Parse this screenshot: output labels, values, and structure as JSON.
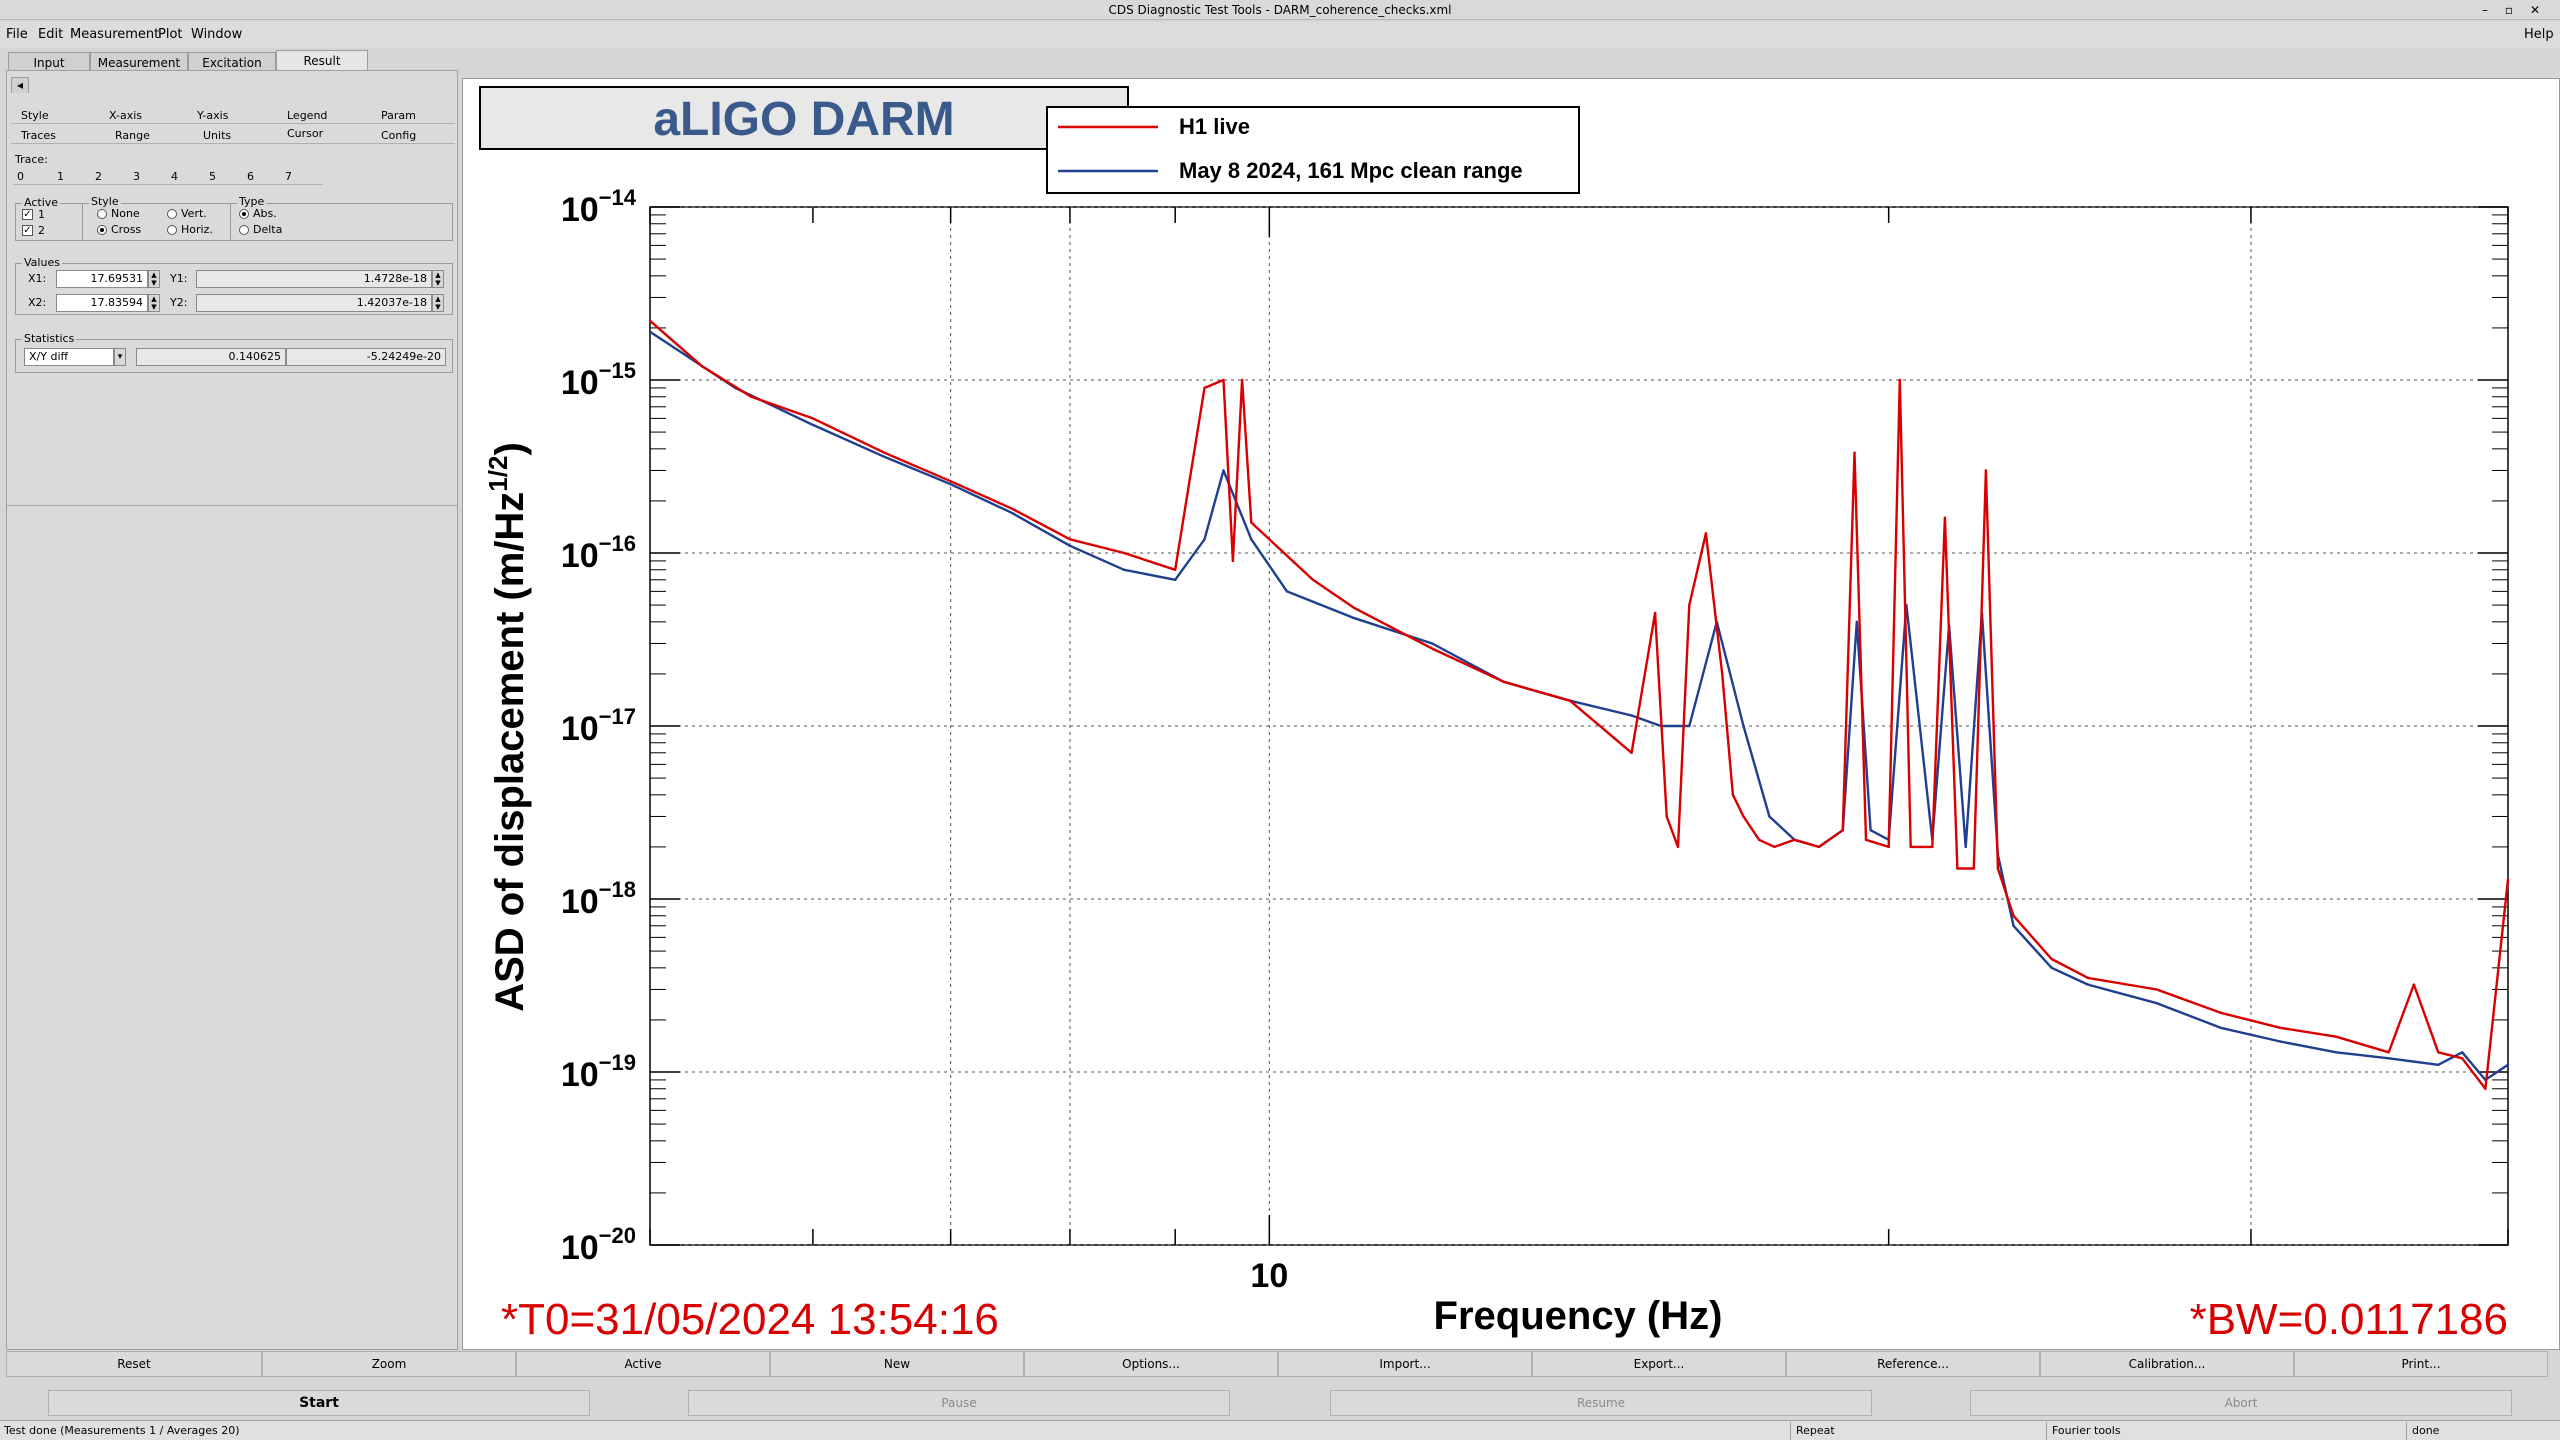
{
  "window": {
    "title": "CDS Diagnostic Test Tools - DARM_coherence_checks.xml",
    "controls": [
      "–",
      "▫",
      "✕"
    ]
  },
  "menu": {
    "items": [
      "File",
      "Edit",
      "Measurement",
      "Plot",
      "Window"
    ],
    "help": "Help"
  },
  "main_tabs": [
    "Input",
    "Measurement",
    "Excitation",
    "Result"
  ],
  "result_panel": {
    "back_arrow": "◂",
    "tabs_row1": [
      "Style",
      "X-axis",
      "Y-axis",
      "Legend",
      "Param"
    ],
    "tabs_row2": [
      "Traces",
      "Range",
      "Units",
      "Cursor",
      "Config"
    ],
    "trace_label": "Trace:",
    "trace_tabs": [
      "0",
      "1",
      "2",
      "3",
      "4",
      "5",
      "6",
      "7"
    ],
    "active_label": "Active",
    "active_items": [
      "1",
      "2"
    ],
    "style_label": "Style",
    "style_options": [
      "None",
      "Vert.",
      "Cross",
      "Horiz."
    ],
    "type_label": "Type",
    "type_options": [
      "Abs.",
      "Delta"
    ],
    "values_label": "Values",
    "x1_label": "X1:",
    "x1_value": "17.69531",
    "y1_label": "Y1:",
    "y1_value": "1.4728e-18",
    "x2_label": "X2:",
    "x2_value": "17.83594",
    "y2_label": "Y2:",
    "y2_value": "1.42037e-18",
    "statistics_label": "Statistics",
    "stat_mode": "X/Y diff",
    "stat_x": "0.140625",
    "stat_y": "-5.24249e-20"
  },
  "plot": {
    "title_box": "aLIGO DARM",
    "legend": [
      {
        "label": "H1 live",
        "color": "#d80000"
      },
      {
        "label": "May 8 2024, 161 Mpc clean range",
        "color": "#1f3f8f"
      }
    ],
    "y_label": "ASD of displacement (m/Hz",
    "y_label_exp": "1/2",
    "y_label_close": ")",
    "x_label": "Frequency (Hz)",
    "t0_text": "*T0=31/05/2024 13:54:16",
    "bw_text": "*BW=0.0117186"
  },
  "chart_data": {
    "type": "line",
    "title": "aLIGO DARM",
    "xlabel": "Frequency (Hz)",
    "ylabel": "ASD of displacement (m/Hz^(1/2))",
    "x_scale": "log",
    "y_scale": "log",
    "xlim": [
      5,
      40
    ],
    "ylim": [
      1e-20,
      1e-14
    ],
    "x_tick_labels": [
      "10"
    ],
    "y_tick_labels": [
      {
        "base": "10",
        "exp": "−14"
      },
      {
        "base": "10",
        "exp": "−15"
      },
      {
        "base": "10",
        "exp": "−16"
      },
      {
        "base": "10",
        "exp": "−17"
      },
      {
        "base": "10",
        "exp": "−18"
      },
      {
        "base": "10",
        "exp": "−19"
      },
      {
        "base": "10",
        "exp": "−20"
      }
    ],
    "grid": true,
    "legend_position": "top-center",
    "series": [
      {
        "name": "May 8 2024, 161 Mpc clean range",
        "color": "#1f3f8f",
        "x": [
          5,
          5.5,
          6,
          6.5,
          7,
          7.5,
          8,
          8.5,
          9,
          9.3,
          9.5,
          9.8,
          10.2,
          11,
          12,
          13,
          14,
          15,
          15.5,
          16,
          16.5,
          17,
          17.5,
          18,
          18.5,
          19,
          19.3,
          19.6,
          20,
          20.4,
          21,
          21.4,
          21.8,
          22.2,
          22.6,
          23,
          24,
          25,
          27,
          29,
          31,
          33,
          35,
          37,
          38,
          39,
          40
        ],
        "y": [
          1.9e-15,
          9e-16,
          5.5e-16,
          3.6e-16,
          2.5e-16,
          1.7e-16,
          1.1e-16,
          8e-17,
          7e-17,
          1.2e-16,
          3e-16,
          1.2e-16,
          6e-17,
          4.2e-17,
          3e-17,
          1.8e-17,
          1.4e-17,
          1.15e-17,
          1e-17,
          1e-17,
          4e-17,
          1e-17,
          3e-18,
          2.2e-18,
          2e-18,
          2.5e-18,
          4e-17,
          2.5e-18,
          2.2e-18,
          5e-17,
          2.2e-18,
          3.8e-17,
          2e-18,
          4.5e-17,
          1.8e-18,
          7e-19,
          4e-19,
          3.2e-19,
          2.5e-19,
          1.8e-19,
          1.5e-19,
          1.3e-19,
          1.2e-19,
          1.1e-19,
          1.3e-19,
          9e-20,
          1.1e-19
        ]
      },
      {
        "name": "H1 live",
        "color": "#d80000",
        "x": [
          5,
          5.3,
          5.6,
          6,
          6.5,
          7,
          7.5,
          8,
          8.5,
          9,
          9.3,
          9.5,
          9.6,
          9.7,
          9.8,
          10,
          10.5,
          11,
          12,
          13,
          14,
          15,
          15.4,
          15.6,
          15.8,
          16,
          16.3,
          16.6,
          16.8,
          17,
          17.3,
          17.6,
          18,
          18.5,
          19,
          19.25,
          19.5,
          20,
          20.25,
          20.5,
          21,
          21.3,
          21.6,
          22,
          22.3,
          22.6,
          23,
          24,
          25,
          27,
          29,
          31,
          33,
          35,
          36,
          37,
          38,
          39,
          40
        ],
        "y": [
          2.2e-15,
          1.2e-15,
          8e-16,
          6e-16,
          3.8e-16,
          2.6e-16,
          1.8e-16,
          1.2e-16,
          1e-16,
          8e-17,
          9e-16,
          1e-15,
          9e-17,
          1e-15,
          1.5e-16,
          1.2e-16,
          7e-17,
          4.8e-17,
          2.8e-17,
          1.8e-17,
          1.4e-17,
          7e-18,
          4.5e-17,
          3e-18,
          2e-18,
          5e-17,
          1.3e-16,
          2e-17,
          4e-18,
          3e-18,
          2.2e-18,
          2e-18,
          2.2e-18,
          2e-18,
          2.5e-18,
          3.8e-16,
          2.2e-18,
          2e-18,
          1e-15,
          2e-18,
          2e-18,
          1.6e-16,
          1.5e-18,
          1.5e-18,
          3e-16,
          1.5e-18,
          8e-19,
          4.5e-19,
          3.5e-19,
          3e-19,
          2.2e-19,
          1.8e-19,
          1.6e-19,
          1.3e-19,
          3.2e-19,
          1.3e-19,
          1.2e-19,
          8e-20,
          1.3e-18
        ]
      }
    ]
  },
  "plot_buttons": [
    "Reset",
    "Zoom",
    "Active",
    "New",
    "Options...",
    "Import...",
    "Export...",
    "Reference...",
    "Calibration...",
    "Print..."
  ],
  "run_buttons": [
    "Start",
    "Pause",
    "Resume",
    "Abort"
  ],
  "status": {
    "message": "Test done (Measurements 1 / Averages 20)",
    "mode": "Repeat",
    "tool": "Fourier tools",
    "state": "done"
  }
}
